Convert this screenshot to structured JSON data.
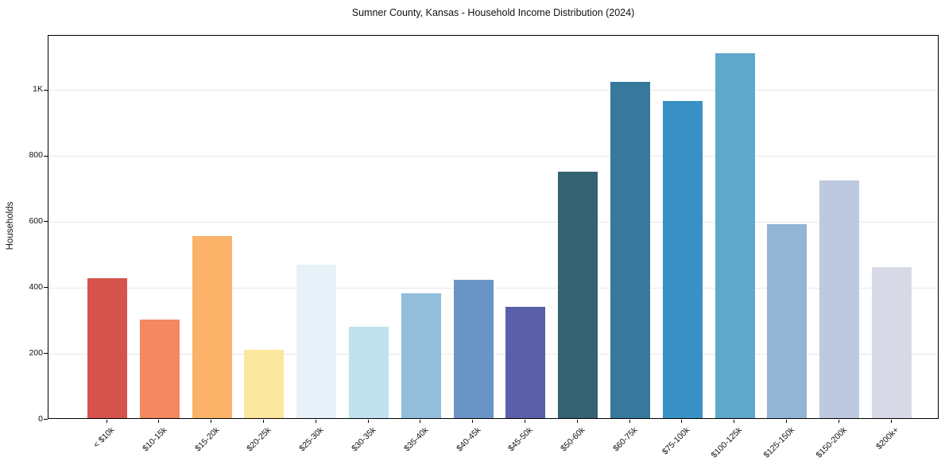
{
  "title": "Sumner County, Kansas - Household Income Distribution (2024)",
  "chart_data": {
    "type": "bar",
    "title": "Sumner County, Kansas - Household Income Distribution (2024)",
    "xlabel": "",
    "ylabel": "Households",
    "categories": [
      "< $10k",
      "$10-15k",
      "$15-20k",
      "$20-25k",
      "$25-30k",
      "$30-35k",
      "$35-40k",
      "$40-45k",
      "$45-50k",
      "$50-60k",
      "$60-75k",
      "$75-100k",
      "$100-125k",
      "$125-150k",
      "$150-200k",
      "$200k+"
    ],
    "values": [
      425,
      300,
      552,
      208,
      466,
      278,
      379,
      420,
      339,
      748,
      1022,
      963,
      1107,
      589,
      721,
      459
    ],
    "bar_colors": [
      "#d5534d",
      "#f48860",
      "#fab369",
      "#fbe79d",
      "#e7f2f8",
      "#c0e1ee",
      "#92bedc",
      "#6b94c6",
      "#5a5fa8",
      "#356273",
      "#36799d",
      "#3990c4",
      "#60a7cc",
      "#92b5d6",
      "#bdc9df",
      "#d7d9e6"
    ],
    "yticks": [
      {
        "label": "0",
        "value": 0
      },
      {
        "label": "200",
        "value": 200
      },
      {
        "label": "400",
        "value": 400
      },
      {
        "label": "600",
        "value": 600
      },
      {
        "label": "800",
        "value": 800
      },
      {
        "label": "1K",
        "value": 1000
      }
    ],
    "ylim": [
      0,
      1166
    ],
    "grid": "horizontal",
    "grid_color": "#e7e7e7",
    "axis_color": "#000000",
    "text_color": "#111111",
    "background": "#ffffff",
    "legend": "none"
  }
}
